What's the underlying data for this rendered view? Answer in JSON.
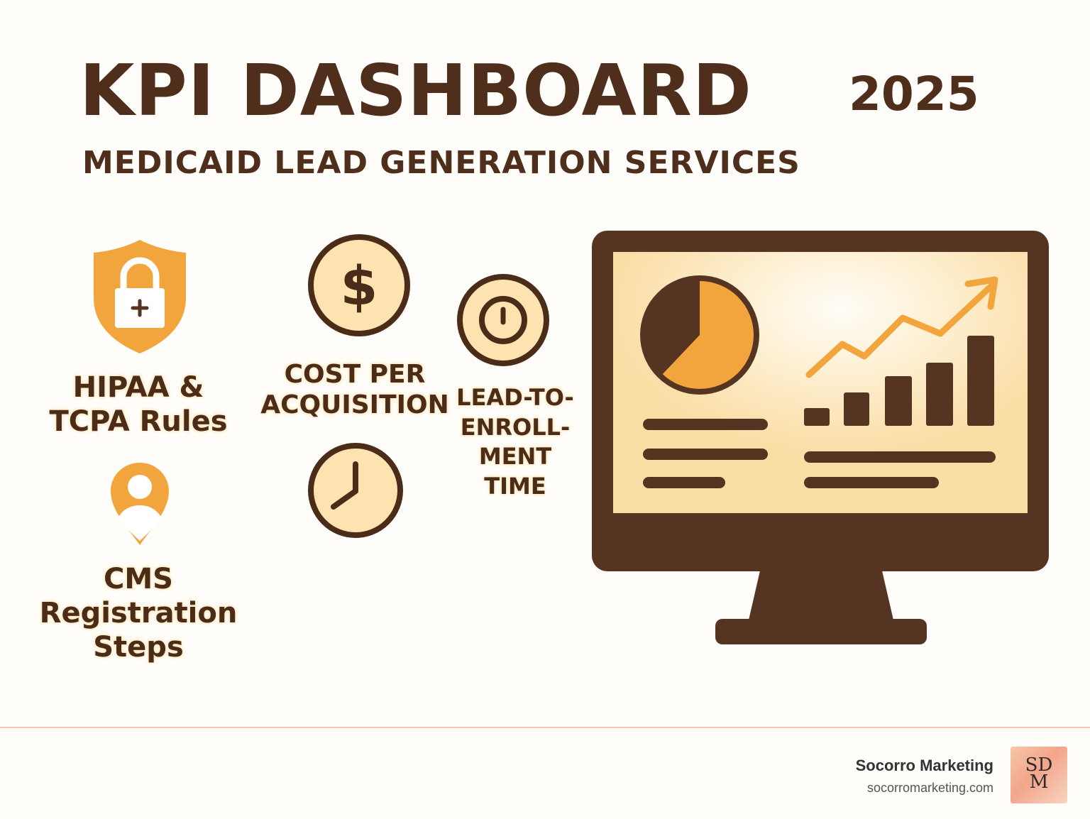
{
  "header": {
    "title": "KPI DASHBOARD",
    "year": "2025",
    "subtitle": "MEDICAID LEAD GENERATION SERVICES"
  },
  "items": {
    "hipaa_line1": "HIPAA &",
    "hipaa_line2": "TCPA Rules",
    "cms_line1": "CMS",
    "cms_line2": "Registration",
    "cms_line3": "Steps",
    "cpa_line1": "COST PER",
    "cpa_line2": "ACQUISITION",
    "lte_line1": "LEAD-TO-",
    "lte_line2": "ENROLL-",
    "lte_line3": "MENT",
    "lte_line4": "TIME"
  },
  "icons": {
    "shield": "shield-lock-icon",
    "pin": "location-person-icon",
    "dollar": "dollar-coin-icon",
    "clock": "clock-icon",
    "timer": "timer-icon",
    "monitor": "monitor-dashboard-icon"
  },
  "footer": {
    "brand": "Socorro Marketing",
    "url": "socorromarketing.com",
    "logo_top": "SD",
    "logo_bottom": "M"
  },
  "colors": {
    "brown": "#553522",
    "orange": "#f3a53d",
    "cream": "#fde3b0"
  }
}
